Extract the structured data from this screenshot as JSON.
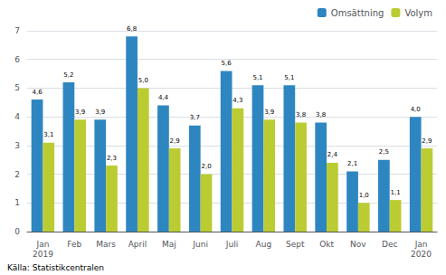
{
  "chart_data": {
    "type": "bar",
    "categories": [
      "Jan\n2019",
      "Feb",
      "Mars",
      "April",
      "Maj",
      "Juni",
      "Juli",
      "Aug",
      "Sept",
      "Okt",
      "Nov",
      "Dec",
      "Jan\n2020"
    ],
    "series": [
      {
        "name": "Omsättning",
        "color": "#2E86C1",
        "values": [
          4.6,
          5.2,
          3.9,
          6.8,
          4.4,
          3.7,
          5.6,
          5.1,
          5.1,
          3.8,
          2.1,
          2.5,
          4.0
        ],
        "value_labels": [
          "4,6",
          "5,2",
          "3,9",
          "6,8",
          "4,4",
          "3,7",
          "5,6",
          "5,1",
          "5,1",
          "3,8",
          "2,1",
          "2,5",
          "4,0"
        ]
      },
      {
        "name": "Volym",
        "color": "#BBCC33",
        "values": [
          3.1,
          3.9,
          2.3,
          5.0,
          2.9,
          2.0,
          4.3,
          3.9,
          3.8,
          2.4,
          1.0,
          1.1,
          2.9
        ],
        "value_labels": [
          "3,1",
          "3,9",
          "2,3",
          "5,0",
          "2,9",
          "2,0",
          "4,3",
          "3,9",
          "3,8",
          "2,4",
          "1,0",
          "1,1",
          "2,9"
        ]
      }
    ],
    "ylim": [
      0,
      7
    ],
    "yticks": [
      0,
      1,
      2,
      3,
      4,
      5,
      6,
      7
    ],
    "grid": true,
    "legend": "upper right",
    "data_labels": true,
    "annotations": [
      "Källa: Statistikcentralen"
    ]
  }
}
